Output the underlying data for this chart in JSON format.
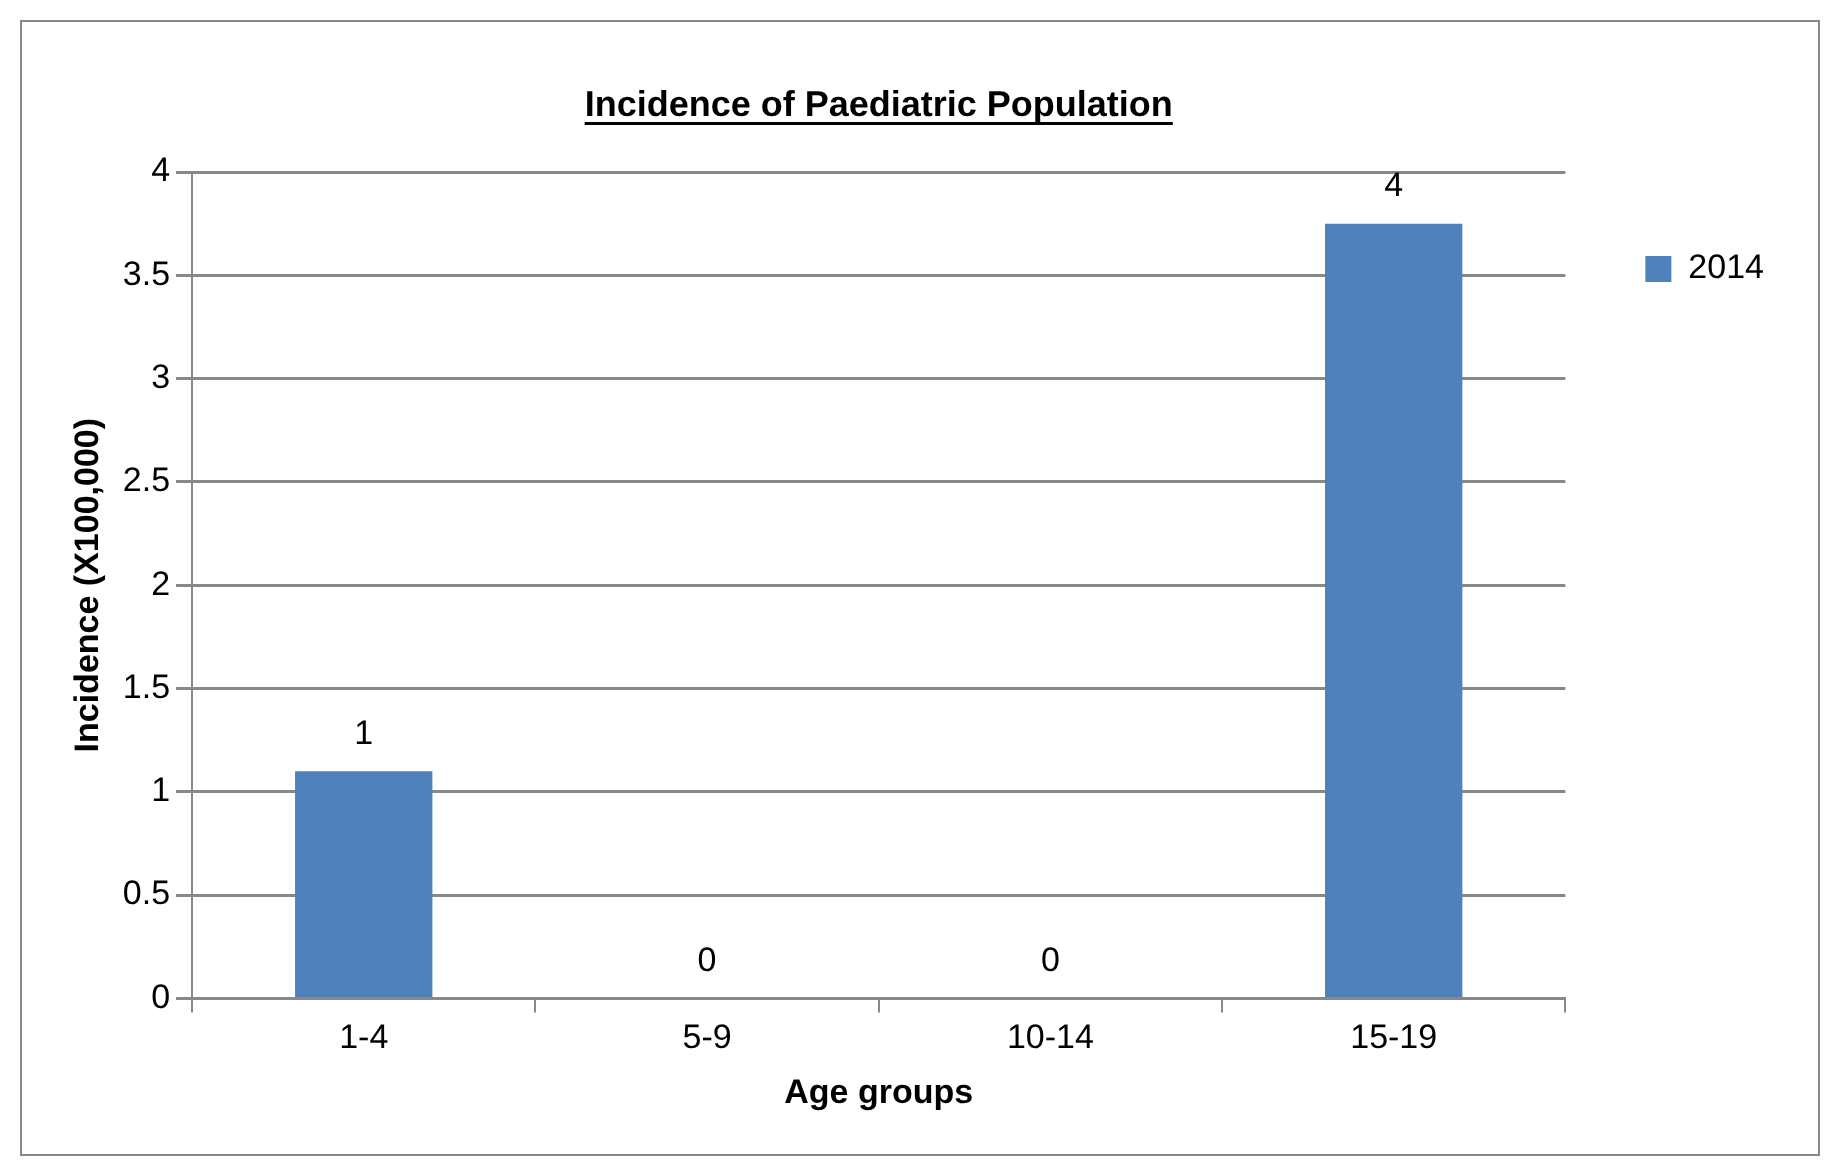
{
  "chart_data": {
    "type": "bar",
    "title": "Incidence of Paediatric Population",
    "xlabel": "Age groups",
    "ylabel": "Incidence (X100,000)",
    "categories": [
      "1-4",
      "5-9",
      "10-14",
      "15-19"
    ],
    "series": [
      {
        "name": "2014",
        "color": "#4f81bd",
        "values": [
          1.1,
          0,
          0,
          3.75
        ],
        "value_labels": [
          "1",
          "0",
          "0",
          "4"
        ]
      }
    ],
    "ylim": [
      0,
      4
    ],
    "yticks": [
      0,
      0.5,
      1,
      1.5,
      2,
      2.5,
      3,
      3.5,
      4
    ],
    "grid": "y",
    "legend": "right"
  }
}
